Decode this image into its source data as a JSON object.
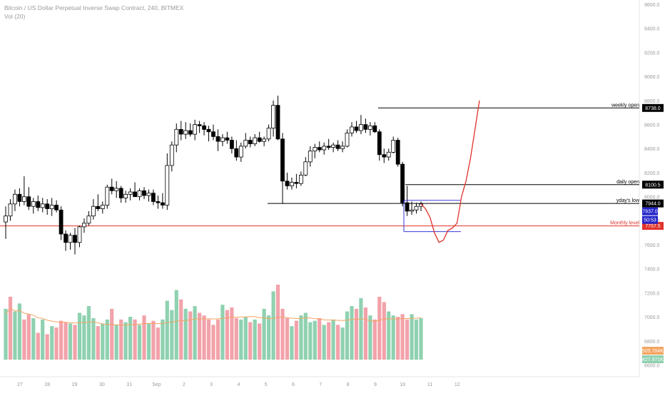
{
  "header": {
    "title": "Bitcoin / US Dollar Perpetual Inverse Swap Contract, 240, BITMEX",
    "volume_label": "Vol (20)"
  },
  "colors": {
    "up_candle": "#ffffff",
    "down_candle": "#000000",
    "volume_up": "#8fd1b0",
    "volume_down": "#f2a2aa",
    "volume_ma": "#f4a460",
    "monthly_level": "#e0312a",
    "projection": "#e0312a",
    "range_box": "#3a3adb"
  },
  "chart_data": {
    "type": "candlestick",
    "title": "Bitcoin / US Dollar Perpetual Inverse Swap Contract, 240, BITMEX",
    "y_axis_ticks": [
      "9600.0",
      "9400.0",
      "9200.0",
      "9000.0",
      "8800.0",
      "8600.0",
      "8400.0",
      "8200.0",
      "8000.0",
      "7800.0",
      "7600.0",
      "7400.0",
      "7200.0",
      "7000.0",
      "6800.0",
      "6600.0"
    ],
    "x_axis_ticks": [
      "27",
      "28",
      "29",
      "30",
      "31",
      "Sep",
      "2",
      "3",
      "4",
      "5",
      "6",
      "7",
      "8",
      "9",
      "10",
      "11",
      "12"
    ],
    "price_range": [
      7260,
      9660
    ],
    "candles": [
      {
        "o": 7790,
        "h": 7920,
        "l": 7650,
        "c": 7840
      },
      {
        "o": 7840,
        "h": 7980,
        "l": 7800,
        "c": 7940
      },
      {
        "o": 7940,
        "h": 8060,
        "l": 7880,
        "c": 8020
      },
      {
        "o": 8020,
        "h": 8070,
        "l": 7920,
        "c": 7960
      },
      {
        "o": 7960,
        "h": 8170,
        "l": 7930,
        "c": 8000
      },
      {
        "o": 8000,
        "h": 8080,
        "l": 7890,
        "c": 7920
      },
      {
        "o": 7920,
        "h": 7990,
        "l": 7860,
        "c": 7960
      },
      {
        "o": 7960,
        "h": 8010,
        "l": 7880,
        "c": 7910
      },
      {
        "o": 7910,
        "h": 7990,
        "l": 7870,
        "c": 7940
      },
      {
        "o": 7940,
        "h": 7980,
        "l": 7850,
        "c": 7900
      },
      {
        "o": 7900,
        "h": 7990,
        "l": 7840,
        "c": 7930
      },
      {
        "o": 7930,
        "h": 7970,
        "l": 7870,
        "c": 7890
      },
      {
        "o": 7890,
        "h": 7920,
        "l": 7640,
        "c": 7690
      },
      {
        "o": 7690,
        "h": 7720,
        "l": 7550,
        "c": 7620
      },
      {
        "o": 7620,
        "h": 7700,
        "l": 7560,
        "c": 7680
      },
      {
        "o": 7680,
        "h": 7740,
        "l": 7520,
        "c": 7620
      },
      {
        "o": 7620,
        "h": 7760,
        "l": 7580,
        "c": 7750
      },
      {
        "o": 7750,
        "h": 7820,
        "l": 7700,
        "c": 7780
      },
      {
        "o": 7780,
        "h": 7880,
        "l": 7760,
        "c": 7840
      },
      {
        "o": 7840,
        "h": 7980,
        "l": 7810,
        "c": 7920
      },
      {
        "o": 7920,
        "h": 8020,
        "l": 7880,
        "c": 7900
      },
      {
        "o": 7900,
        "h": 7960,
        "l": 7860,
        "c": 7930
      },
      {
        "o": 7930,
        "h": 8100,
        "l": 7900,
        "c": 8080
      },
      {
        "o": 8080,
        "h": 8150,
        "l": 8020,
        "c": 8050
      },
      {
        "o": 8050,
        "h": 8130,
        "l": 7990,
        "c": 8070
      },
      {
        "o": 8070,
        "h": 8090,
        "l": 7950,
        "c": 7990
      },
      {
        "o": 7990,
        "h": 8050,
        "l": 7950,
        "c": 8020
      },
      {
        "o": 8020,
        "h": 8070,
        "l": 7970,
        "c": 8040
      },
      {
        "o": 8040,
        "h": 8120,
        "l": 8000,
        "c": 8000
      },
      {
        "o": 8000,
        "h": 8070,
        "l": 7970,
        "c": 8050
      },
      {
        "o": 8050,
        "h": 8080,
        "l": 7980,
        "c": 8010
      },
      {
        "o": 8010,
        "h": 8060,
        "l": 7960,
        "c": 8030
      },
      {
        "o": 8030,
        "h": 8060,
        "l": 7930,
        "c": 7960
      },
      {
        "o": 7960,
        "h": 8010,
        "l": 7900,
        "c": 7950
      },
      {
        "o": 7950,
        "h": 8030,
        "l": 7900,
        "c": 7930
      },
      {
        "o": 7930,
        "h": 8360,
        "l": 7890,
        "c": 8260
      },
      {
        "o": 8260,
        "h": 8460,
        "l": 8210,
        "c": 8430
      },
      {
        "o": 8430,
        "h": 8610,
        "l": 8370,
        "c": 8560
      },
      {
        "o": 8560,
        "h": 8630,
        "l": 8470,
        "c": 8520
      },
      {
        "o": 8520,
        "h": 8620,
        "l": 8480,
        "c": 8550
      },
      {
        "o": 8550,
        "h": 8610,
        "l": 8500,
        "c": 8520
      },
      {
        "o": 8520,
        "h": 8640,
        "l": 8470,
        "c": 8600
      },
      {
        "o": 8600,
        "h": 8630,
        "l": 8530,
        "c": 8590
      },
      {
        "o": 8590,
        "h": 8620,
        "l": 8510,
        "c": 8560
      },
      {
        "o": 8560,
        "h": 8590,
        "l": 8460,
        "c": 8540
      },
      {
        "o": 8540,
        "h": 8600,
        "l": 8470,
        "c": 8500
      },
      {
        "o": 8500,
        "h": 8560,
        "l": 8380,
        "c": 8460
      },
      {
        "o": 8460,
        "h": 8520,
        "l": 8420,
        "c": 8490
      },
      {
        "o": 8490,
        "h": 8540,
        "l": 8440,
        "c": 8470
      },
      {
        "o": 8470,
        "h": 8500,
        "l": 8360,
        "c": 8400
      },
      {
        "o": 8400,
        "h": 8470,
        "l": 8300,
        "c": 8330
      },
      {
        "o": 8330,
        "h": 8450,
        "l": 8290,
        "c": 8420
      },
      {
        "o": 8420,
        "h": 8530,
        "l": 8400,
        "c": 8470
      },
      {
        "o": 8470,
        "h": 8500,
        "l": 8410,
        "c": 8440
      },
      {
        "o": 8440,
        "h": 8520,
        "l": 8420,
        "c": 8490
      },
      {
        "o": 8490,
        "h": 8540,
        "l": 8450,
        "c": 8460
      },
      {
        "o": 8460,
        "h": 8500,
        "l": 8420,
        "c": 8480
      },
      {
        "o": 8480,
        "h": 8600,
        "l": 8460,
        "c": 8570
      },
      {
        "o": 8570,
        "h": 8800,
        "l": 8500,
        "c": 8760
      },
      {
        "o": 8760,
        "h": 8840,
        "l": 8470,
        "c": 8480
      },
      {
        "o": 8480,
        "h": 8530,
        "l": 7940,
        "c": 8130
      },
      {
        "o": 8130,
        "h": 8200,
        "l": 8060,
        "c": 8090
      },
      {
        "o": 8090,
        "h": 8160,
        "l": 8060,
        "c": 8120
      },
      {
        "o": 8120,
        "h": 8190,
        "l": 8070,
        "c": 8110
      },
      {
        "o": 8110,
        "h": 8210,
        "l": 8090,
        "c": 8180
      },
      {
        "o": 8180,
        "h": 8330,
        "l": 8170,
        "c": 8290
      },
      {
        "o": 8290,
        "h": 8420,
        "l": 8250,
        "c": 8380
      },
      {
        "o": 8380,
        "h": 8440,
        "l": 8320,
        "c": 8410
      },
      {
        "o": 8410,
        "h": 8460,
        "l": 8370,
        "c": 8390
      },
      {
        "o": 8390,
        "h": 8450,
        "l": 8350,
        "c": 8420
      },
      {
        "o": 8420,
        "h": 8480,
        "l": 8390,
        "c": 8410
      },
      {
        "o": 8410,
        "h": 8450,
        "l": 8370,
        "c": 8430
      },
      {
        "o": 8430,
        "h": 8470,
        "l": 8380,
        "c": 8400
      },
      {
        "o": 8400,
        "h": 8460,
        "l": 8370,
        "c": 8420
      },
      {
        "o": 8420,
        "h": 8560,
        "l": 8410,
        "c": 8530
      },
      {
        "o": 8530,
        "h": 8620,
        "l": 8500,
        "c": 8580
      },
      {
        "o": 8580,
        "h": 8630,
        "l": 8530,
        "c": 8550
      },
      {
        "o": 8550,
        "h": 8680,
        "l": 8520,
        "c": 8600
      },
      {
        "o": 8600,
        "h": 8650,
        "l": 8530,
        "c": 8560
      },
      {
        "o": 8560,
        "h": 8620,
        "l": 8510,
        "c": 8590
      },
      {
        "o": 8590,
        "h": 8620,
        "l": 8530,
        "c": 8540
      },
      {
        "o": 8540,
        "h": 8560,
        "l": 8300,
        "c": 8350
      },
      {
        "o": 8350,
        "h": 8400,
        "l": 8280,
        "c": 8330
      },
      {
        "o": 8330,
        "h": 8400,
        "l": 8300,
        "c": 8370
      },
      {
        "o": 8370,
        "h": 8500,
        "l": 8360,
        "c": 8470
      },
      {
        "o": 8470,
        "h": 8490,
        "l": 8250,
        "c": 8270
      },
      {
        "o": 8270,
        "h": 8290,
        "l": 7920,
        "c": 7950
      },
      {
        "o": 7950,
        "h": 8090,
        "l": 7840,
        "c": 7880
      },
      {
        "o": 7880,
        "h": 7960,
        "l": 7850,
        "c": 7890
      },
      {
        "o": 7890,
        "h": 7950,
        "l": 7860,
        "c": 7920
      },
      {
        "o": 7920,
        "h": 7960,
        "l": 7880,
        "c": 7940
      }
    ],
    "volume": {
      "values": [
        380,
        470,
        360,
        420,
        300,
        340,
        310,
        200,
        300,
        190,
        250,
        240,
        290,
        280,
        270,
        260,
        350,
        330,
        400,
        310,
        250,
        270,
        300,
        380,
        260,
        300,
        280,
        320,
        300,
        260,
        330,
        270,
        290,
        240,
        300,
        440,
        370,
        520,
        450,
        380,
        360,
        400,
        350,
        330,
        300,
        260,
        300,
        410,
        370,
        390,
        310,
        300,
        320,
        280,
        300,
        270,
        380,
        330,
        510,
        560,
        380,
        310,
        250,
        290,
        330,
        350,
        280,
        290,
        310,
        260,
        280,
        300,
        260,
        240,
        360,
        400,
        380,
        460,
        390,
        330,
        300,
        470,
        430,
        360,
        330,
        320,
        340,
        300,
        340,
        300,
        310
      ],
      "up": [
        1,
        0,
        1,
        1,
        0,
        0,
        1,
        0,
        1,
        0,
        1,
        0,
        0,
        0,
        1,
        0,
        1,
        1,
        1,
        1,
        0,
        1,
        1,
        0,
        1,
        0,
        1,
        1,
        0,
        1,
        0,
        1,
        0,
        0,
        1,
        1,
        1,
        1,
        0,
        1,
        0,
        1,
        0,
        0,
        0,
        0,
        0,
        1,
        0,
        0,
        0,
        1,
        1,
        0,
        1,
        0,
        1,
        1,
        1,
        0,
        0,
        0,
        1,
        0,
        1,
        1,
        1,
        1,
        0,
        1,
        0,
        1,
        0,
        1,
        1,
        1,
        0,
        1,
        0,
        1,
        0,
        0,
        0,
        1,
        1,
        0,
        0,
        0,
        1,
        1,
        1
      ],
      "ma_label": "505.704K",
      "last_label": "427.971K"
    },
    "horizontal_levels": [
      {
        "label": "weekly open",
        "value": 8738.0,
        "tag": "8738.0",
        "tag_color": "#000000"
      },
      {
        "label": "daily open",
        "value": 8100.5,
        "tag": "8100.5",
        "tag_color": "#000000"
      },
      {
        "label": "yday's low",
        "value": 7944.0,
        "tag": "7944.0",
        "tag_color": "#000000"
      },
      {
        "label": "Monthly level",
        "value": 7757.5,
        "tag": "7757.5",
        "tag_color": "#e0312a"
      }
    ],
    "price_tags": [
      {
        "text": "7937.0",
        "color": "#2323c8"
      },
      {
        "text": "50:53",
        "color": "#2323c8"
      }
    ],
    "range_box": {
      "top": 7970,
      "bottom": 7710
    },
    "projection_path": [
      [
        7940,
        7940
      ],
      [
        7880,
        7900
      ],
      [
        7790,
        7830
      ],
      [
        7700,
        7700
      ],
      [
        7620,
        7620
      ],
      [
        7640,
        7640
      ],
      [
        7720,
        7720
      ],
      [
        7740,
        7740
      ],
      [
        7780,
        7780
      ],
      [
        8000,
        8000
      ],
      [
        8130,
        8130
      ],
      [
        8320,
        8320
      ],
      [
        8560,
        8560
      ],
      [
        8800,
        8800
      ]
    ]
  }
}
